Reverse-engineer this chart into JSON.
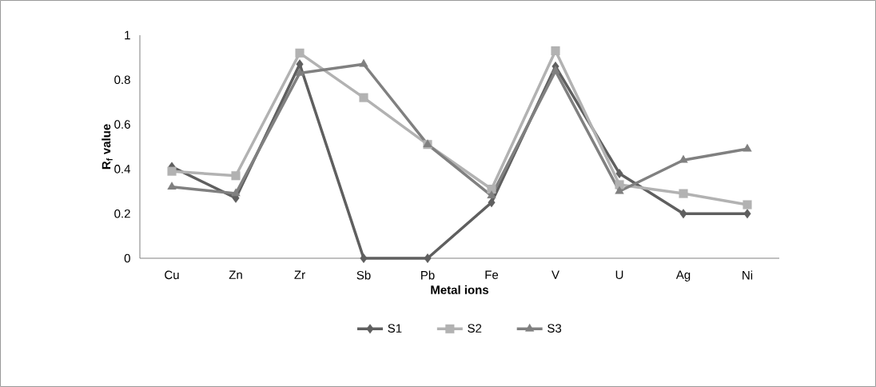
{
  "chart_data": {
    "type": "line",
    "xlabel": "Metal ions",
    "ylabel": "R$_{f}$ value",
    "categories": [
      "Cu",
      "Zn",
      "Zr",
      "Sb",
      "Pb",
      "Fe",
      "V",
      "U",
      "Ag",
      "Ni"
    ],
    "series": [
      {
        "name": "S1",
        "color": "#5f5f5f",
        "marker": "diamond",
        "values": [
          0.41,
          0.27,
          0.87,
          0,
          0,
          0.25,
          0.86,
          0.38,
          0.2,
          0.2
        ]
      },
      {
        "name": "S2",
        "color": "#b2b2b2",
        "marker": "square",
        "values": [
          0.39,
          0.37,
          0.92,
          0.72,
          0.51,
          0.31,
          0.93,
          0.33,
          0.29,
          0.24
        ]
      },
      {
        "name": "S3",
        "color": "#808080",
        "marker": "triangle",
        "values": [
          0.32,
          0.29,
          0.83,
          0.87,
          0.51,
          0.28,
          0.84,
          0.3,
          0.44,
          0.49
        ]
      }
    ],
    "ylim": [
      0,
      1
    ],
    "yticks": [
      0,
      0.2,
      0.4,
      0.6,
      0.8,
      1
    ],
    "legend": "bottom",
    "grid": false
  }
}
